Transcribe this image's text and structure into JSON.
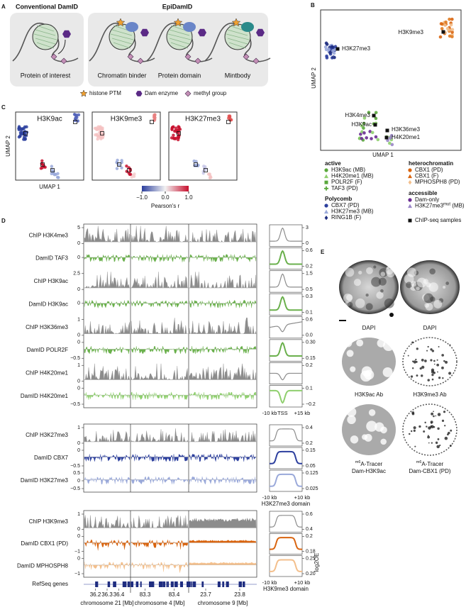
{
  "panel_a": {
    "letter": "A",
    "title_left": "Conventional DamID",
    "title_right": "EpiDamID",
    "labels": [
      "Protein of interest",
      "Chromatin binder",
      "Protein domain",
      "Mintbody"
    ],
    "legend": [
      "histone PTM",
      "Dam enzyme",
      "methyl group"
    ]
  },
  "panel_b": {
    "letter": "B",
    "x_label": "UMAP 1",
    "y_label": "UMAP 2",
    "point_labels": [
      "H3K9me3",
      "H3K27me3",
      "H3K4me3",
      "H3K9ac",
      "H3K36me3",
      "H4K20me1"
    ],
    "legend_groups": [
      {
        "title": "active",
        "items": [
          {
            "text": "H3K9ac (MB)",
            "color": "#5aa83c"
          },
          {
            "text": "H4K20me1 (MB)",
            "color": "#8fcf6e"
          },
          {
            "text": "POLR2F (F)",
            "color": "#5aa83c"
          },
          {
            "text": "TAF3 (PD)",
            "color": "#5aa83c"
          }
        ]
      },
      {
        "title": "Polycomb",
        "items": [
          {
            "text": "CBX7 (PD)",
            "color": "#2c3f9e"
          },
          {
            "text": "H3K27me3 (MB)",
            "color": "#9aa9da"
          },
          {
            "text": "RING1B (F)",
            "color": "#1f2d80"
          }
        ]
      },
      {
        "title": "heterochromatin",
        "items": [
          {
            "text": "CBX1 (PD)",
            "color": "#d9640f"
          },
          {
            "text": "CBX1 (F)",
            "color": "#d9640f"
          },
          {
            "text": "MPHOSPH8 (PD)",
            "color": "#f3bf8c"
          }
        ]
      },
      {
        "title": "accessible",
        "items": [
          {
            "text": "Dam-only",
            "color": "#6a2c91"
          },
          {
            "text": "H3K27me3",
            "sup": "mut",
            "suffix": " (MB)",
            "color": "#9a86c8"
          }
        ]
      }
    ],
    "chipseq": "ChIP-seq samples"
  },
  "panel_c": {
    "letter": "C",
    "titles": [
      "H3K9ac",
      "H3K9me3",
      "H3K27me3"
    ],
    "x_label": "UMAP 1",
    "y_label": "UMAP 2",
    "colorbar": {
      "label": "Pearson's r",
      "ticks": [
        {
          "value": -1,
          "label": "−1.0"
        },
        {
          "value": 0,
          "label": "0.0"
        },
        {
          "value": 1,
          "label": "1.0"
        }
      ]
    }
  },
  "panel_d": {
    "letter": "D",
    "right_axis_label": "log2OE",
    "groups": [
      {
        "tracks": [
          {
            "label": "ChIP H3K4me3",
            "ticks": [
              "5",
              "0"
            ],
            "profile_ticks": [
              "3",
              "0"
            ],
            "color": "#8c8c8c"
          },
          {
            "label": "DamID TAF3",
            "ticks": [
              "0"
            ],
            "profile_ticks": [
              "0.6",
              "0.2"
            ],
            "color": "#6ab04c"
          },
          {
            "label": "ChIP H3K9ac",
            "ticks": [
              "2.5",
              "0"
            ],
            "profile_ticks": [
              "1.5",
              "0.5"
            ],
            "color": "#8c8c8c"
          },
          {
            "label": "DamID H3K9ac",
            "ticks": [
              "0"
            ],
            "profile_ticks": [
              "0.3",
              "0.1"
            ],
            "color": "#6ab04c"
          },
          {
            "label": "ChIP H3K36me3",
            "ticks": [
              "1",
              "0"
            ],
            "profile_ticks": [
              "0.6",
              "0.0"
            ],
            "color": "#8c8c8c"
          },
          {
            "label": "DamID POLR2F",
            "ticks": [
              "0",
              "−0.5"
            ],
            "profile_ticks": [
              "0.30",
              "0.15"
            ],
            "color": "#6ab04c"
          },
          {
            "label": "ChIP H4K20me1",
            "ticks": [
              "1",
              "0"
            ],
            "profile_ticks": [
              "0.2"
            ],
            "color": "#8c8c8c"
          },
          {
            "label": "DamID H4K20me1",
            "ticks": [
              "0",
              "−0.5"
            ],
            "profile_ticks": [
              "0.1",
              "−0.2"
            ],
            "color": "#8fcf6e"
          }
        ],
        "profile_axis": [
          "-10 kb",
          "TSS",
          "+15 kb"
        ]
      },
      {
        "tracks": [
          {
            "label": "ChIP H3K27me3",
            "ticks": [
              "1",
              "0"
            ],
            "profile_ticks": [
              "0.4",
              "0.2"
            ],
            "color": "#8c8c8c"
          },
          {
            "label": "DamID CBX7",
            "ticks": [
              "0",
              "−0.5"
            ],
            "profile_ticks": [
              "0.15",
              "0.05"
            ],
            "color": "#2c3f9e"
          },
          {
            "label": "DamID H3K27me3",
            "ticks": [
              "0.5",
              "0",
              "−0.5"
            ],
            "profile_ticks": [
              "0.125",
              "0.025"
            ],
            "color": "#9aa9da"
          }
        ],
        "profile_axis": [
          "-10 kb",
          "+10 kb"
        ],
        "profile_caption": "H3K27me3 domain"
      },
      {
        "tracks": [
          {
            "label": "ChIP H3K9me3",
            "ticks": [
              "1",
              "0"
            ],
            "profile_ticks": [
              "0.6",
              "0.4"
            ],
            "color": "#8c8c8c"
          },
          {
            "label": "DamID CBX1 (PD)",
            "ticks": [
              "0",
              "−1"
            ],
            "profile_ticks": [
              "0.2",
              "0.18"
            ],
            "color": "#d9640f"
          },
          {
            "label": "DamID MPHOSPH8",
            "ticks": [
              "0",
              "−1"
            ],
            "profile_ticks": [
              "0.25",
              "0.20"
            ],
            "color": "#f3bf8c"
          }
        ],
        "profile_axis": [
          "-10 kb",
          "+10 kb"
        ],
        "profile_caption": "H3K9me3 domain"
      }
    ],
    "genes_label": "RefSeq genes",
    "chromosomes": [
      {
        "ticks": [
          "36.2",
          "36.3",
          "36.4"
        ],
        "label": "chromosome 21 [Mb]"
      },
      {
        "ticks": [
          "83.3",
          "83.4"
        ],
        "label": "chromosome 4 [Mb]"
      },
      {
        "ticks": [
          "23.7",
          "23.8"
        ],
        "label": "chromosome 9 [Mb]"
      }
    ]
  },
  "panel_e": {
    "letter": "E",
    "labels": [
      {
        "text": "DAPI"
      },
      {
        "text": "DAPI"
      },
      {
        "text": "H3K9ac Ab"
      },
      {
        "text": "H3K9me3 Ab"
      },
      {
        "sup": "m6",
        "text": "A-Tracer",
        "line2": "Dam-H3K9ac"
      },
      {
        "sup": "m6",
        "text": "A-Tracer",
        "line2": "Dam-CBX1 (PD)"
      }
    ]
  }
}
